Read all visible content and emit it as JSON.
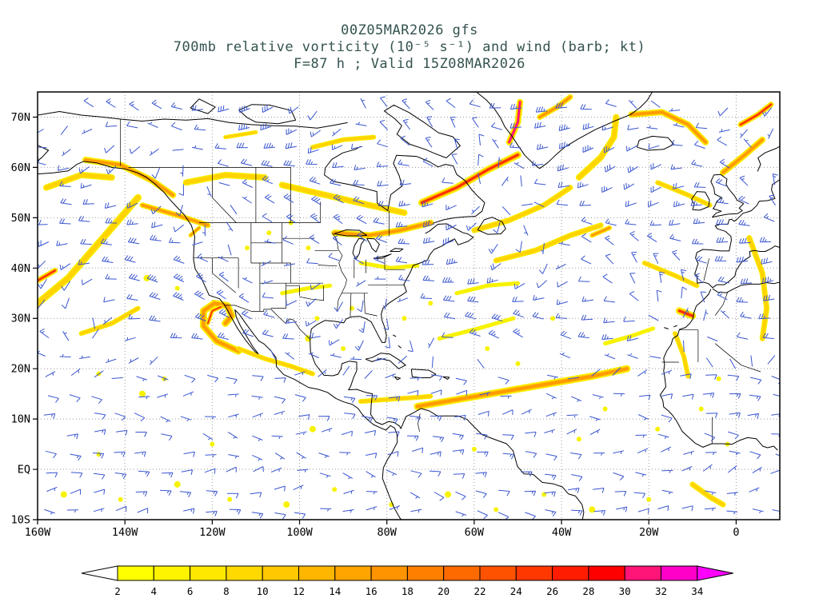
{
  "header": {
    "line1": "00Z05MAR2026 gfs",
    "line2": "700mb relative vorticity (10⁻⁵ s⁻¹) and wind (barb; kt)",
    "line3": "F=87 h ; Valid 15Z08MAR2026",
    "title_color": "#33524f"
  },
  "chart_data": {
    "type": "heatmap",
    "title": "00Z05MAR2026 gfs",
    "subtitle": "700mb relative vorticity (10⁻⁵ s⁻¹) and wind (barb; kt)",
    "forecast_label": "F=87 h ; Valid 15Z08MAR2026",
    "model": "gfs",
    "run": "00Z05MAR2026",
    "level": "700mb",
    "field": "relative vorticity (10⁻⁵ s⁻¹)",
    "wind_overlay": "wind (barb; kt)",
    "projection": "equirectangular lat/lon",
    "lon_range": [
      -160,
      10
    ],
    "lat_range": [
      -10,
      75
    ],
    "grid": "dotted",
    "grid_color": "#9a9a9a",
    "coast_color": "#000000",
    "wind_barb_color": "#3a55cf",
    "x_ticks": [
      {
        "label": "160W",
        "lon": -160
      },
      {
        "label": "140W",
        "lon": -140
      },
      {
        "label": "120W",
        "lon": -120
      },
      {
        "label": "100W",
        "lon": -100
      },
      {
        "label": "80W",
        "lon": -80
      },
      {
        "label": "60W",
        "lon": -60
      },
      {
        "label": "40W",
        "lon": -40
      },
      {
        "label": "20W",
        "lon": -20
      },
      {
        "label": "0",
        "lon": 0
      }
    ],
    "y_ticks": [
      {
        "label": "70N",
        "lat": 70
      },
      {
        "label": "60N",
        "lat": 60
      },
      {
        "label": "50N",
        "lat": 50
      },
      {
        "label": "40N",
        "lat": 40
      },
      {
        "label": "30N",
        "lat": 30
      },
      {
        "label": "20N",
        "lat": 20
      },
      {
        "label": "10N",
        "lat": 10
      },
      {
        "label": "EQ",
        "lat": 0
      },
      {
        "label": "10S",
        "lat": -10
      }
    ],
    "colorbar": {
      "levels": [
        2,
        4,
        6,
        8,
        10,
        12,
        14,
        16,
        18,
        20,
        22,
        24,
        26,
        28,
        30,
        32,
        34
      ],
      "colors": [
        "#ffff00",
        "#fff400",
        "#ffe800",
        "#ffd900",
        "#ffc800",
        "#ffb600",
        "#ffa500",
        "#ff9300",
        "#ff8000",
        "#ff6a00",
        "#ff5200",
        "#ff3800",
        "#ff1c00",
        "#ff0000",
        "#ff1478",
        "#ff00c8"
      ],
      "under_color": "#ffffff",
      "over_color": "#ff00ff"
    },
    "intensity_palette": {
      "1": "#f7f200",
      "2": "#ffd400",
      "3": "#ff9c00",
      "4": "#ff2e00",
      "5": "#ff00b4"
    },
    "vorticity_features": [
      {
        "p": [
          [
            -160,
            33
          ],
          [
            -153,
            38
          ],
          [
            -147,
            44
          ],
          [
            -141,
            50
          ],
          [
            -137,
            54
          ]
        ],
        "w": 9,
        "i": 2
      },
      {
        "p": [
          [
            -160,
            37.5
          ],
          [
            -156,
            39.5
          ]
        ],
        "w": 7,
        "i": 4
      },
      {
        "p": [
          [
            -158,
            56
          ],
          [
            -150,
            58.5
          ],
          [
            -143,
            58
          ]
        ],
        "w": 8,
        "i": 2
      },
      {
        "p": [
          [
            -149,
            61.5
          ],
          [
            -141,
            60.5
          ],
          [
            -134,
            57.5
          ],
          [
            -129,
            54.5
          ]
        ],
        "w": 8,
        "i": 3
      },
      {
        "p": [
          [
            -136,
            52.5
          ],
          [
            -128,
            50.5
          ],
          [
            -121,
            48.5
          ]
        ],
        "w": 7,
        "i": 3
      },
      {
        "p": [
          [
            -126,
            57
          ],
          [
            -117,
            58.5
          ],
          [
            -108,
            58
          ]
        ],
        "w": 8,
        "i": 2
      },
      {
        "p": [
          [
            -104,
            56.5
          ],
          [
            -94,
            54.5
          ],
          [
            -84,
            52.5
          ],
          [
            -76,
            51
          ]
        ],
        "w": 8,
        "i": 2
      },
      {
        "p": [
          [
            -92,
            47
          ],
          [
            -84,
            46.5
          ],
          [
            -77,
            47.5
          ],
          [
            -70,
            49
          ]
        ],
        "w": 8,
        "i": 3
      },
      {
        "p": [
          [
            -86,
            41
          ],
          [
            -79,
            40
          ],
          [
            -73,
            40.5
          ]
        ],
        "w": 5,
        "i": 1
      },
      {
        "p": [
          [
            -72,
            53
          ],
          [
            -64,
            56
          ],
          [
            -57,
            59.5
          ],
          [
            -50,
            62.5
          ]
        ],
        "w": 9,
        "i": 4
      },
      {
        "p": [
          [
            -52,
            65
          ],
          [
            -50,
            69
          ],
          [
            -49.5,
            73
          ]
        ],
        "w": 8,
        "i": 5
      },
      {
        "p": [
          [
            -45,
            70
          ],
          [
            -41,
            72
          ],
          [
            -38,
            74
          ]
        ],
        "w": 7,
        "i": 3
      },
      {
        "p": [
          [
            -60,
            47.5
          ],
          [
            -52,
            49.5
          ],
          [
            -44,
            52.5
          ],
          [
            -38,
            56
          ]
        ],
        "w": 7,
        "i": 2
      },
      {
        "p": [
          [
            -36,
            58
          ],
          [
            -31,
            62
          ],
          [
            -28,
            66
          ],
          [
            -27.5,
            70
          ]
        ],
        "w": 8,
        "i": 2
      },
      {
        "p": [
          [
            -24,
            70.5
          ],
          [
            -17,
            71
          ],
          [
            -11,
            68.5
          ],
          [
            -7,
            65
          ]
        ],
        "w": 8,
        "i": 3
      },
      {
        "p": [
          [
            -3,
            59
          ],
          [
            2,
            62.5
          ],
          [
            6,
            65.5
          ]
        ],
        "w": 8,
        "i": 3
      },
      {
        "p": [
          [
            1,
            68.5
          ],
          [
            5,
            70.5
          ],
          [
            8,
            72.5
          ]
        ],
        "w": 7,
        "i": 4
      },
      {
        "p": [
          [
            -18,
            57
          ],
          [
            -11,
            54.5
          ],
          [
            -6,
            52.5
          ]
        ],
        "w": 6,
        "i": 2
      },
      {
        "p": [
          [
            -55,
            41.5
          ],
          [
            -46,
            43.5
          ],
          [
            -38,
            46.5
          ],
          [
            -31,
            48.5
          ]
        ],
        "w": 7,
        "i": 2
      },
      {
        "p": [
          [
            -33,
            46.5
          ],
          [
            -29,
            48
          ]
        ],
        "w": 6,
        "i": 3
      },
      {
        "p": [
          [
            -21,
            41
          ],
          [
            -14,
            38.5
          ],
          [
            -9,
            36.5
          ]
        ],
        "w": 6,
        "i": 2
      },
      {
        "p": [
          [
            -13,
            31.5
          ],
          [
            -10,
            30.5
          ]
        ],
        "w": 9,
        "i": 4
      },
      {
        "p": [
          [
            -14,
            27
          ],
          [
            -12,
            22.5
          ],
          [
            -11,
            18.5
          ]
        ],
        "w": 6,
        "i": 2
      },
      {
        "p": [
          [
            3,
            46
          ],
          [
            6,
            39
          ],
          [
            7,
            32
          ],
          [
            6,
            26
          ]
        ],
        "w": 7,
        "i": 2
      },
      {
        "p": [
          [
            -114,
            23.5
          ],
          [
            -119,
            25.5
          ],
          [
            -122,
            28.5
          ],
          [
            -122,
            31.5
          ],
          [
            -119.5,
            33
          ],
          [
            -116.5,
            32.5
          ],
          [
            -115.5,
            30.5
          ],
          [
            -117,
            29
          ]
        ],
        "w": 9,
        "i": 3
      },
      {
        "p": [
          [
            -121,
            29
          ],
          [
            -120,
            31.5
          ],
          [
            -118,
            32.3
          ]
        ],
        "w": 5,
        "i": 4
      },
      {
        "p": [
          [
            -114,
            24
          ],
          [
            -108,
            22
          ],
          [
            -102,
            20.5
          ],
          [
            -97,
            19
          ]
        ],
        "w": 6,
        "i": 2
      },
      {
        "p": [
          [
            -104,
            35
          ],
          [
            -98,
            36
          ],
          [
            -93,
            36.5
          ]
        ],
        "w": 5,
        "i": 1
      },
      {
        "p": [
          [
            -125,
            46.5
          ],
          [
            -123,
            48
          ]
        ],
        "w": 5,
        "i": 3
      },
      {
        "p": [
          [
            -86,
            13.5
          ],
          [
            -78,
            14
          ],
          [
            -70,
            14.5
          ]
        ],
        "w": 6,
        "i": 2
      },
      {
        "p": [
          [
            -73,
            12.5
          ],
          [
            -63,
            14
          ],
          [
            -53,
            15.5
          ],
          [
            -43,
            17
          ],
          [
            -33,
            18.5
          ],
          [
            -25,
            20
          ]
        ],
        "w": 9,
        "i": 3
      },
      {
        "p": [
          [
            -68,
            26
          ],
          [
            -59,
            28
          ],
          [
            -51,
            30
          ]
        ],
        "w": 5,
        "i": 1
      },
      {
        "p": [
          [
            -150,
            27
          ],
          [
            -143,
            29
          ],
          [
            -137,
            32
          ]
        ],
        "w": 6,
        "i": 2
      },
      {
        "p": [
          [
            -10,
            -3
          ],
          [
            -6,
            -5.5
          ],
          [
            -3,
            -7
          ]
        ],
        "w": 7,
        "i": 2
      },
      {
        "p": [
          [
            -97,
            64
          ],
          [
            -90,
            65.5
          ],
          [
            -83,
            66
          ]
        ],
        "w": 6,
        "i": 2
      },
      {
        "p": [
          [
            -117,
            66
          ],
          [
            -110,
            67
          ]
        ],
        "w": 5,
        "i": 2
      },
      {
        "p": [
          [
            -30,
            25
          ],
          [
            -24,
            26.5
          ],
          [
            -19,
            28
          ]
        ],
        "w": 5,
        "i": 1
      },
      {
        "p": [
          [
            -64,
            35
          ],
          [
            -57,
            36.5
          ],
          [
            -50,
            37
          ]
        ],
        "w": 5,
        "i": 1
      }
    ],
    "vorticity_speckles": [
      [
        -154,
        -5,
        4
      ],
      [
        -141,
        -6,
        3
      ],
      [
        -128,
        -3,
        4
      ],
      [
        -116,
        -6,
        3
      ],
      [
        -103,
        -7,
        4
      ],
      [
        -92,
        -4,
        3
      ],
      [
        -79,
        -7,
        3
      ],
      [
        -66,
        -5,
        4
      ],
      [
        -55,
        -8,
        3
      ],
      [
        -44,
        -5,
        3
      ],
      [
        -33,
        -8,
        4
      ],
      [
        -20,
        -6,
        3
      ],
      [
        -146,
        3,
        3
      ],
      [
        -120,
        5,
        3
      ],
      [
        -97,
        8,
        4
      ],
      [
        -60,
        4,
        3
      ],
      [
        -36,
        6,
        3
      ],
      [
        -136,
        15,
        4
      ],
      [
        -131,
        18,
        3
      ],
      [
        -146,
        19,
        3
      ],
      [
        -98,
        26,
        4
      ],
      [
        -90,
        24,
        3
      ],
      [
        -42,
        30,
        3
      ],
      [
        -57,
        24,
        3
      ],
      [
        -135,
        38,
        4
      ],
      [
        -128,
        36,
        3
      ],
      [
        -96,
        30,
        3
      ],
      [
        -88,
        32,
        3
      ],
      [
        -50,
        21,
        3
      ],
      [
        -30,
        12,
        3
      ],
      [
        -18,
        8,
        3
      ],
      [
        -8,
        12,
        3
      ],
      [
        -4,
        18,
        3
      ],
      [
        -2,
        5,
        3
      ],
      [
        -70,
        33,
        3
      ],
      [
        -76,
        30,
        3
      ],
      [
        -112,
        44,
        3
      ],
      [
        -107,
        47,
        3
      ],
      [
        -102,
        49,
        3
      ],
      [
        -98,
        44,
        3
      ]
    ]
  }
}
